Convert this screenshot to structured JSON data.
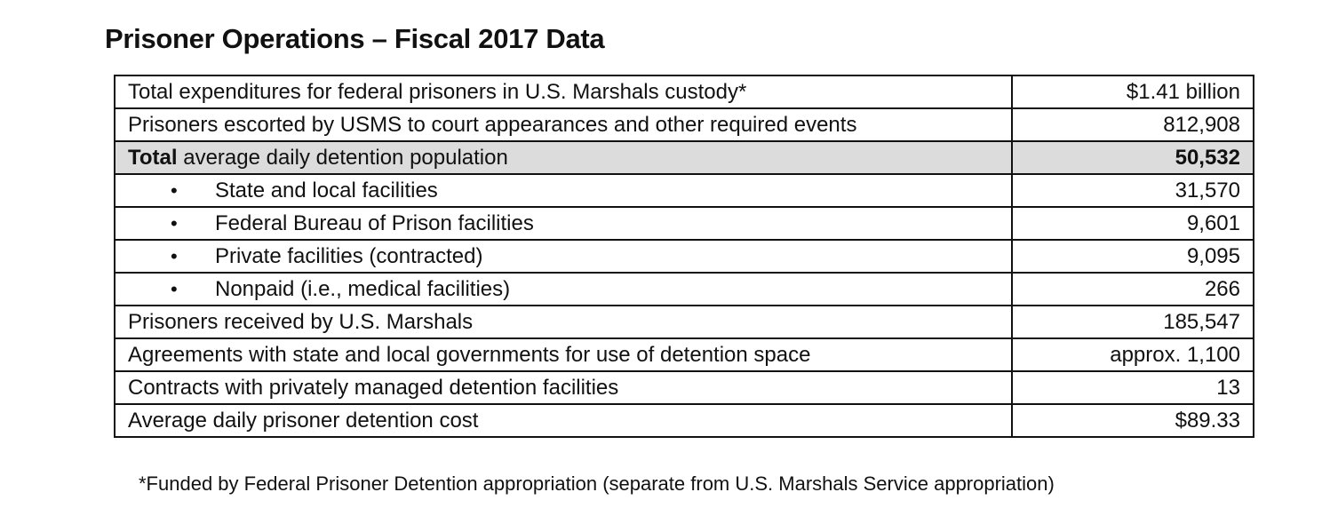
{
  "title": "Prisoner Operations – Fiscal 2017 Data",
  "rows": [
    {
      "label": "Total expenditures for federal prisoners in U.S. Marshals custody*",
      "value": "$1.41 billion"
    },
    {
      "label": "Prisoners escorted by USMS to court appearances and other required events",
      "value": "812,908"
    },
    {
      "label_bold": "Total",
      "label_rest": " average daily detention population",
      "value": "50,532"
    },
    {
      "bullet": "•",
      "label": "State and local facilities",
      "value": "31,570"
    },
    {
      "bullet": "•",
      "label": "Federal Bureau of Prison facilities",
      "value": "9,601"
    },
    {
      "bullet": "•",
      "label": "Private facilities (contracted)",
      "value": "9,095"
    },
    {
      "bullet": "•",
      "label": "Nonpaid (i.e., medical facilities)",
      "value": "266"
    },
    {
      "label": "Prisoners received by U.S. Marshals",
      "value": "185,547"
    },
    {
      "label": "Agreements with state and local governments for use of detention space",
      "value": "approx. 1,100"
    },
    {
      "label": "Contracts with privately managed detention facilities",
      "value": "13"
    },
    {
      "label": "Average daily prisoner detention cost",
      "value": "$89.33"
    }
  ],
  "highlight_color": "#dcdcdc",
  "footnote": "*Funded by Federal Prisoner Detention appropriation (separate from U.S. Marshals Service appropriation)"
}
